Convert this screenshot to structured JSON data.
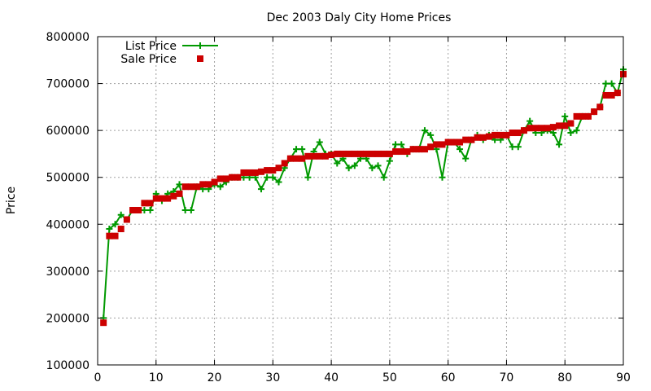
{
  "chart_data": {
    "type": "line",
    "title": "Dec 2003 Daly City Home Prices",
    "xlabel": "",
    "ylabel": "Price",
    "xlim": [
      0,
      90
    ],
    "ylim": [
      100000,
      800000
    ],
    "xticks": [
      0,
      10,
      20,
      30,
      40,
      50,
      60,
      70,
      80,
      90
    ],
    "yticks": [
      100000,
      200000,
      300000,
      400000,
      500000,
      600000,
      700000,
      800000
    ],
    "grid": true,
    "legend_position": "top-left",
    "series": [
      {
        "name": "List Price",
        "style": "linespoints",
        "marker": "plus",
        "color": "#009900",
        "x": [
          1,
          2,
          3,
          4,
          5,
          6,
          7,
          8,
          9,
          10,
          11,
          12,
          13,
          14,
          15,
          16,
          17,
          18,
          19,
          20,
          21,
          22,
          23,
          24,
          25,
          26,
          27,
          28,
          29,
          30,
          31,
          32,
          33,
          34,
          35,
          36,
          37,
          38,
          39,
          40,
          41,
          42,
          43,
          44,
          45,
          46,
          47,
          48,
          49,
          50,
          51,
          52,
          53,
          54,
          55,
          56,
          57,
          58,
          59,
          60,
          61,
          62,
          63,
          64,
          65,
          66,
          67,
          68,
          69,
          70,
          71,
          72,
          73,
          74,
          75,
          76,
          77,
          78,
          79,
          80,
          81,
          82,
          83,
          84,
          85,
          86,
          87,
          88,
          89,
          90
        ],
        "y": [
          200000,
          390000,
          400000,
          420000,
          410000,
          430000,
          430000,
          430000,
          430000,
          465000,
          450000,
          465000,
          470000,
          485000,
          430000,
          430000,
          480000,
          475000,
          475000,
          485000,
          480000,
          490000,
          500000,
          500000,
          500000,
          500000,
          500000,
          475000,
          500000,
          500000,
          490000,
          520000,
          540000,
          560000,
          560000,
          500000,
          555000,
          575000,
          550000,
          550000,
          530000,
          540000,
          520000,
          525000,
          540000,
          540000,
          520000,
          525000,
          500000,
          535000,
          570000,
          570000,
          550000,
          560000,
          560000,
          600000,
          590000,
          560000,
          500000,
          575000,
          575000,
          560000,
          540000,
          580000,
          590000,
          580000,
          590000,
          580000,
          580000,
          590000,
          565000,
          565000,
          600000,
          620000,
          595000,
          595000,
          600000,
          595000,
          570000,
          630000,
          595000,
          600000,
          630000,
          630000,
          640000,
          650000,
          700000,
          700000,
          680000,
          730000
        ]
      },
      {
        "name": "Sale Price",
        "style": "points",
        "marker": "square",
        "color": "#cc0000",
        "x": [
          1,
          2,
          3,
          4,
          5,
          6,
          7,
          8,
          9,
          10,
          11,
          12,
          13,
          14,
          15,
          16,
          17,
          18,
          19,
          20,
          21,
          22,
          23,
          24,
          25,
          26,
          27,
          28,
          29,
          30,
          31,
          32,
          33,
          34,
          35,
          36,
          37,
          38,
          39,
          40,
          41,
          42,
          43,
          44,
          45,
          46,
          47,
          48,
          49,
          50,
          51,
          52,
          53,
          54,
          55,
          56,
          57,
          58,
          59,
          60,
          61,
          62,
          63,
          64,
          65,
          66,
          67,
          68,
          69,
          70,
          71,
          72,
          73,
          74,
          75,
          76,
          77,
          78,
          79,
          80,
          81,
          82,
          83,
          84,
          85,
          86,
          87,
          88,
          89,
          90
        ],
        "y": [
          190000,
          375000,
          375000,
          390000,
          410000,
          430000,
          430000,
          445000,
          445000,
          455000,
          455000,
          455000,
          460000,
          465000,
          480000,
          480000,
          480000,
          485000,
          485000,
          490000,
          497000,
          497000,
          500000,
          500000,
          510000,
          510000,
          510000,
          512000,
          515000,
          515000,
          520000,
          530000,
          540000,
          540000,
          540000,
          545000,
          545000,
          545000,
          545000,
          548000,
          550000,
          550000,
          550000,
          550000,
          550000,
          550000,
          550000,
          550000,
          550000,
          550000,
          555000,
          555000,
          555000,
          560000,
          560000,
          560000,
          565000,
          570000,
          570000,
          575000,
          575000,
          575000,
          580000,
          580000,
          585000,
          585000,
          587000,
          590000,
          590000,
          590000,
          595000,
          595000,
          600000,
          605000,
          605000,
          605000,
          605000,
          607000,
          610000,
          610000,
          615000,
          630000,
          630000,
          630000,
          640000,
          650000,
          675000,
          675000,
          680000,
          720000
        ]
      }
    ]
  }
}
